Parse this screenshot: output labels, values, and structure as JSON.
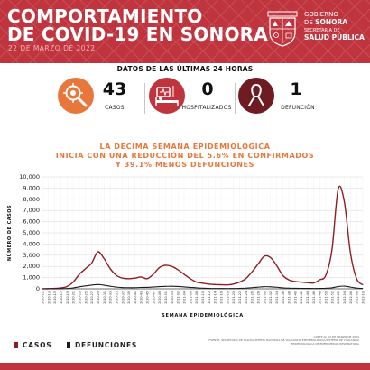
{
  "header": {
    "title_line1": "COMPORTAMIENTO",
    "title_line2": "DE COVID-19 EN SONORA",
    "date": "22 DE MARZO DE 2022",
    "gov_line1": "GOBIERNO",
    "gov_line2": "DE",
    "gov_line2b": "SONORA",
    "secretaria": "SECRETARÍA DE",
    "salud": "SALUD PÚBLICA"
  },
  "stats": {
    "title": "DATOS DE LAS ÚLTIMAS 24 HORAS",
    "items": [
      {
        "value": "43",
        "label": "CASOS",
        "icon": "virus-magnifier-icon",
        "color": "#e8773b"
      },
      {
        "value": "0",
        "label": "HOSPITALIZADOS",
        "icon": "hospital-bed-icon",
        "color": "#c0343d"
      },
      {
        "value": "1",
        "label": "DEFUNCIÓN",
        "icon": "ribbon-icon",
        "color": "#6e1c22"
      }
    ]
  },
  "headline": {
    "line1": "LA DECIMA SEMANA EPIDEMIOLÓGICA",
    "line2": "INICIA CON UNA REDUCCIÓN DEL 5.6% EN CONFIRMADOS",
    "line3": "Y 39.1% MENOS DEFUNCIONES"
  },
  "legend": {
    "casos": "CASOS",
    "defunciones": "DEFUNCIONES",
    "casos_color": "#8f1d24",
    "defunciones_color": "#1a1a1a"
  },
  "source": {
    "line1": "CORTE AL 22 DE MARZO DE 2022",
    "line2": "FUENTE: SECRETARÍA DE SALUD/SISTEMA NACIONAL DE VIGILANCIA EPIDEMIOLÓGICA/SISTEMA DE VIGILANCIA EPIDEMIOLÓGICA DE ENFERMEDAD RESPIRATORIA"
  },
  "chart_data": {
    "type": "line",
    "xlabel": "SEMANA EPIDEMIOLÓGICA",
    "ylabel": "NÚMERO DE CASOS",
    "ylim": [
      0,
      10000
    ],
    "yticks": [
      "0",
      "1,000",
      "2,000",
      "3,000",
      "4,000",
      "5,000",
      "6,000",
      "7,000",
      "8,000",
      "9,000",
      "10,000"
    ],
    "grid": true,
    "legend_position": "bottom-left",
    "x": [
      "2020-11",
      "2020-13",
      "2020-15",
      "2020-17",
      "2020-19",
      "2020-21",
      "2020-23",
      "2020-25",
      "2020-27",
      "2020-29",
      "2020-31",
      "2020-33",
      "2020-35",
      "2020-37",
      "2020-39",
      "2020-41",
      "2020-43",
      "2020-45",
      "2020-47",
      "2020-49",
      "2020-51",
      "2020-53",
      "2021-02",
      "2021-04",
      "2021-06",
      "2021-08",
      "2021-10",
      "2021-12",
      "2021-14",
      "2021-16",
      "2021-18",
      "2021-20",
      "2021-22",
      "2021-24",
      "2021-26",
      "2021-28",
      "2021-30",
      "2021-32",
      "2021-34",
      "2021-36",
      "2021-38",
      "2021-40",
      "2021-42",
      "2021-44",
      "2021-46",
      "2021-48",
      "2021-50",
      "2021-52",
      "2022-02",
      "2022-04",
      "2022-06",
      "2022-08",
      "2022-10"
    ],
    "series": [
      {
        "name": "CASOS",
        "color": "#8f1d24",
        "values": [
          5,
          10,
          30,
          80,
          200,
          600,
          1300,
          1800,
          2300,
          3300,
          2700,
          1800,
          1200,
          950,
          900,
          950,
          1050,
          900,
          1300,
          1900,
          2100,
          2000,
          1700,
          1300,
          900,
          600,
          500,
          420,
          380,
          360,
          350,
          420,
          600,
          900,
          1500,
          2200,
          2900,
          2800,
          2100,
          1200,
          800,
          650,
          600,
          550,
          520,
          800,
          1200,
          3500,
          8900,
          7800,
          3200,
          900,
          350
        ]
      },
      {
        "name": "DEFUNCIONES",
        "color": "#1a1a1a",
        "values": [
          0,
          2,
          5,
          10,
          30,
          80,
          180,
          260,
          330,
          380,
          320,
          230,
          150,
          110,
          100,
          100,
          120,
          130,
          160,
          200,
          220,
          230,
          210,
          170,
          130,
          90,
          60,
          40,
          30,
          25,
          20,
          25,
          40,
          60,
          100,
          150,
          190,
          180,
          140,
          90,
          60,
          45,
          40,
          35,
          30,
          35,
          50,
          90,
          200,
          240,
          150,
          70,
          30
        ]
      }
    ]
  }
}
